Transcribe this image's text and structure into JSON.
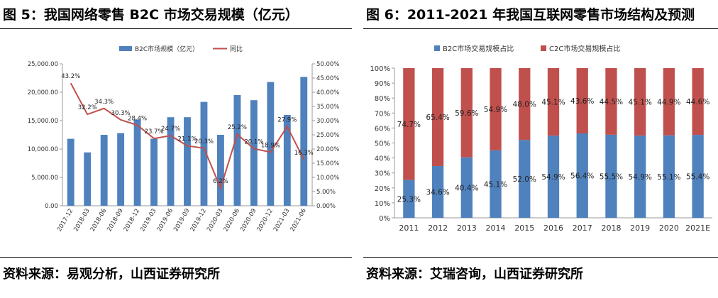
{
  "left": {
    "title": "图 5：我国网络零售 B2C 市场交易规模（亿元）",
    "source": "资料来源：易观分析，山西证券研究所"
  },
  "right": {
    "title": "图 6：2011-2021 年我国互联网零售市场结构及预测",
    "source": "资料来源：艾瑞咨询，山西证券研究所"
  },
  "chart_data": [
    {
      "type": "bar+line",
      "categories": [
        "2017-12",
        "2018-03",
        "2018-06",
        "2018-09",
        "2018-12",
        "2019-03",
        "2019-06",
        "2019-09",
        "2019-12",
        "2020-03",
        "2020-06",
        "2020-09",
        "2020-12",
        "2021-03",
        "2021-06"
      ],
      "series": [
        {
          "name": "B2C市场规模（亿元）",
          "type": "bar",
          "axis": "left",
          "color": "#4f81bd",
          "values": [
            11800,
            9400,
            12500,
            12800,
            15200,
            11800,
            15600,
            15600,
            18300,
            12500,
            19500,
            18600,
            21800,
            16000,
            22700
          ]
        },
        {
          "name": "同比",
          "type": "line",
          "axis": "right",
          "color": "#c0504d",
          "values": [
            43.2,
            32.2,
            34.3,
            30.3,
            28.4,
            23.7,
            24.7,
            21.1,
            20.3,
            6.2,
            25.2,
            20.1,
            18.9,
            27.9,
            16.3
          ],
          "labels": [
            "43.2%",
            "32.2%",
            "34.3%",
            "30.3%",
            "28.4%",
            "23.7%",
            "24.7%",
            "21.1%",
            "20.3%",
            "6.2%",
            "25.2%",
            "20.1%",
            "18.9%",
            "27.9%",
            "16.3%"
          ]
        }
      ],
      "yleft": {
        "min": 0,
        "max": 25000,
        "step": 5000,
        "ticks": [
          "0.00",
          "5,000.00",
          "10,000.00",
          "15,000.00",
          "20,000.00",
          "25,000.00"
        ]
      },
      "yright": {
        "min": 0,
        "max": 50,
        "step": 5,
        "ticks": [
          "0.00%",
          "5.00%",
          "10.00%",
          "15.00%",
          "20.00%",
          "25.00%",
          "30.00%",
          "35.00%",
          "40.00%",
          "45.00%",
          "50.00%"
        ]
      },
      "legend": "top-center",
      "grid": false
    },
    {
      "type": "stacked-bar",
      "categories": [
        "2011",
        "2012",
        "2013",
        "2014",
        "2015",
        "2016",
        "2017",
        "2018",
        "2019",
        "2020",
        "2021E"
      ],
      "series": [
        {
          "name": "B2C市场交易规模占比",
          "color": "#4f81bd",
          "values": [
            25.3,
            34.6,
            40.4,
            45.1,
            52.0,
            54.9,
            56.4,
            55.5,
            54.9,
            55.1,
            55.4
          ],
          "labels": [
            "25.3%",
            "34.6%",
            "40.4%",
            "45.1%",
            "52.0%",
            "54.9%",
            "56.4%",
            "55.5%",
            "54.9%",
            "55.1%",
            "55.4%"
          ]
        },
        {
          "name": "C2C市场交易规模占比",
          "color": "#c0504d",
          "values": [
            74.7,
            65.4,
            59.6,
            54.9,
            48.0,
            45.1,
            43.6,
            44.5,
            45.1,
            44.9,
            44.6
          ],
          "labels": [
            "74.7%",
            "65.4%",
            "59.6%",
            "54.9%",
            "48.0%",
            "45.1%",
            "43.6%",
            "44.5%",
            "45.1%",
            "44.9%",
            "44.6%"
          ]
        }
      ],
      "ylim": [
        0,
        100
      ],
      "yticks": [
        "0%",
        "10%",
        "20%",
        "30%",
        "40%",
        "50%",
        "60%",
        "70%",
        "80%",
        "90%",
        "100%"
      ],
      "legend": "top-center",
      "grid": false
    }
  ]
}
